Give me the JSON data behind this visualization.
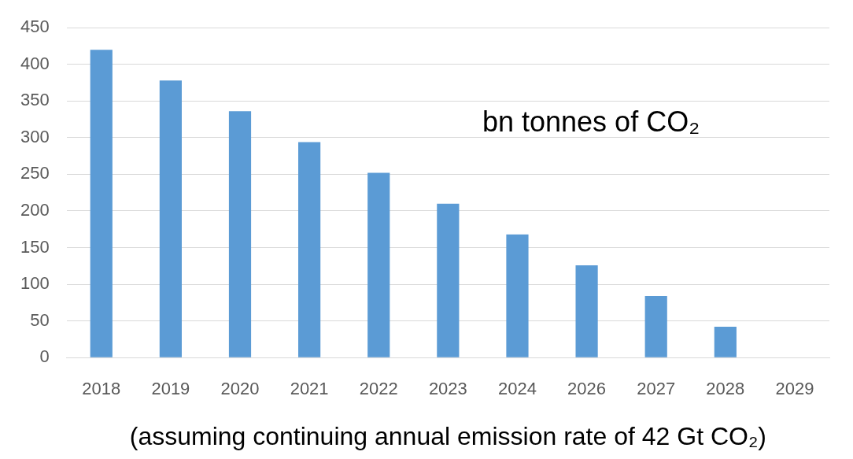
{
  "chart_data": {
    "type": "bar",
    "xlabel": "(assuming continuing annual emission rate of 42 Gt CO₂)",
    "annotations": [
      "bn tonnes of CO₂"
    ],
    "categories": [
      "2018",
      "2019",
      "2020",
      "2021",
      "2022",
      "2023",
      "2024",
      "2026",
      "2027",
      "2028",
      "2029"
    ],
    "values": [
      420,
      378,
      336,
      294,
      252,
      210,
      168,
      126,
      84,
      42,
      0
    ],
    "color": "#5b9bd5",
    "ylim": [
      0,
      450
    ],
    "yticks": [
      0,
      50,
      100,
      150,
      200,
      250,
      300,
      350,
      400,
      450
    ],
    "grid": "y",
    "legend": false
  }
}
